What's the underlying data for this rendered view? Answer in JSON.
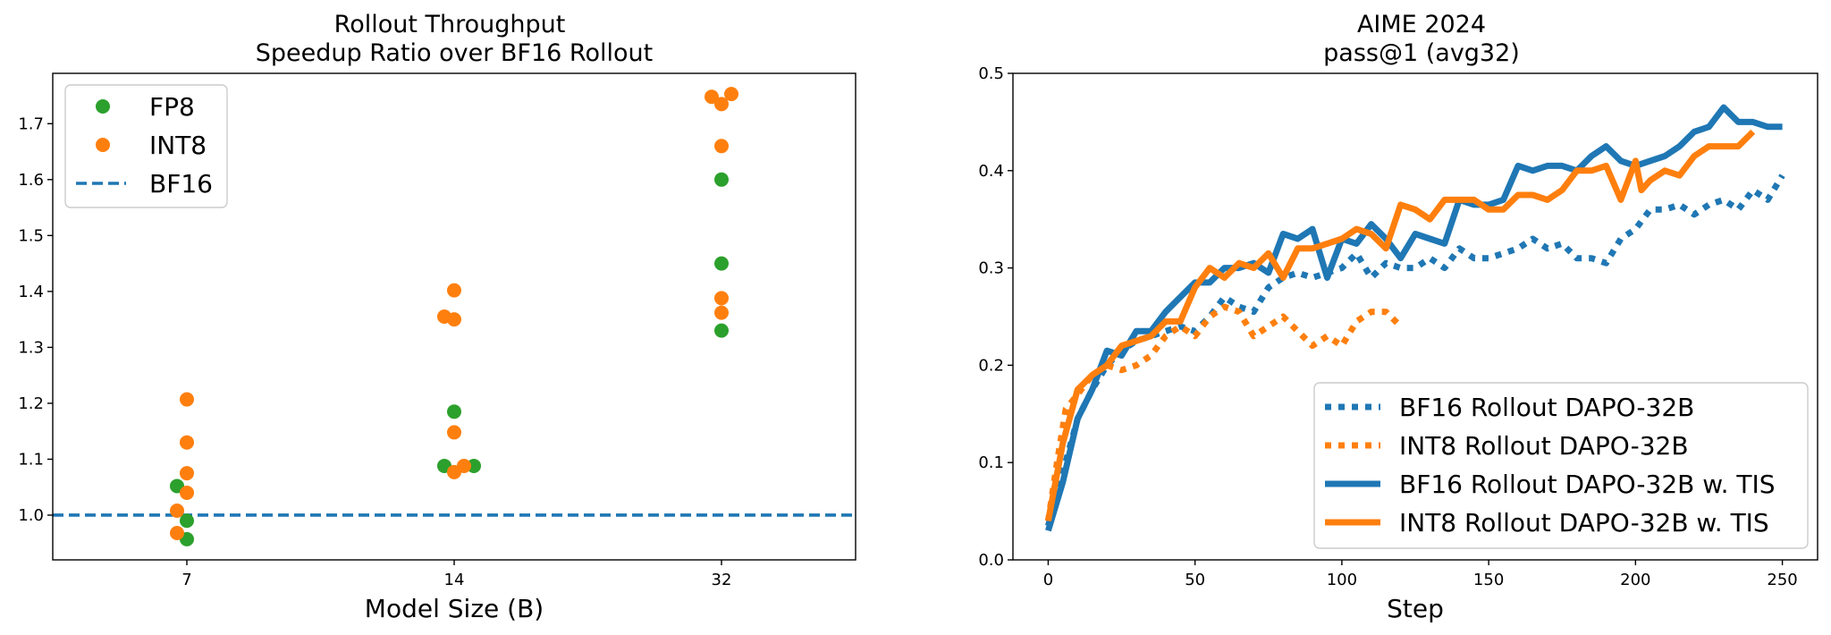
{
  "chart_data": [
    {
      "type": "scatter",
      "title": "Rollout Throughput",
      "subtitle": "Speedup Ratio over BF16 Rollout",
      "xlabel": "Model Size (B)",
      "ylabel": "",
      "categories": [
        "7",
        "14",
        "32"
      ],
      "ylim": [
        0.92,
        1.79
      ],
      "yticks": [
        "1.0",
        "1.1",
        "1.2",
        "1.3",
        "1.4",
        "1.5",
        "1.6",
        "1.7"
      ],
      "legend_position": "top-left",
      "grid": false,
      "series": [
        {
          "name": "FP8",
          "color": "#2ca02c",
          "points": [
            {
              "category": "7",
              "offset": -0.5,
              "y": 1.052
            },
            {
              "category": "7",
              "offset": 0.0,
              "y": 0.99
            },
            {
              "category": "7",
              "offset": 0.0,
              "y": 0.957
            },
            {
              "category": "14",
              "offset": -0.5,
              "y": 1.088
            },
            {
              "category": "14",
              "offset": 0.0,
              "y": 1.185
            },
            {
              "category": "14",
              "offset": 1.0,
              "y": 1.088
            },
            {
              "category": "32",
              "offset": 0.0,
              "y": 1.6
            },
            {
              "category": "32",
              "offset": 0.0,
              "y": 1.45
            },
            {
              "category": "32",
              "offset": 0.0,
              "y": 1.33
            }
          ]
        },
        {
          "name": "INT8",
          "color": "#ff7f0e",
          "points": [
            {
              "category": "7",
              "offset": 0.0,
              "y": 1.207
            },
            {
              "category": "7",
              "offset": 0.0,
              "y": 1.13
            },
            {
              "category": "7",
              "offset": 0.0,
              "y": 1.075
            },
            {
              "category": "7",
              "offset": 0.0,
              "y": 1.04
            },
            {
              "category": "7",
              "offset": -0.5,
              "y": 1.008
            },
            {
              "category": "7",
              "offset": -0.5,
              "y": 0.968
            },
            {
              "category": "14",
              "offset": -0.5,
              "y": 1.355
            },
            {
              "category": "14",
              "offset": 0.0,
              "y": 1.35
            },
            {
              "category": "14",
              "offset": 0.0,
              "y": 1.402
            },
            {
              "category": "14",
              "offset": 0.0,
              "y": 1.148
            },
            {
              "category": "14",
              "offset": 0.0,
              "y": 1.077
            },
            {
              "category": "14",
              "offset": 0.5,
              "y": 1.088
            },
            {
              "category": "32",
              "offset": -0.5,
              "y": 1.748
            },
            {
              "category": "32",
              "offset": 0.0,
              "y": 1.735
            },
            {
              "category": "32",
              "offset": 0.5,
              "y": 1.753
            },
            {
              "category": "32",
              "offset": 0.0,
              "y": 1.66
            },
            {
              "category": "32",
              "offset": 0.0,
              "y": 1.388
            },
            {
              "category": "32",
              "offset": 0.0,
              "y": 1.362
            }
          ]
        },
        {
          "name": "BF16",
          "color": "#1f77b4",
          "style": "dashed",
          "baseline": 1.0
        }
      ]
    },
    {
      "type": "line",
      "title": "AIME 2024",
      "subtitle": "pass@1 (avg32)",
      "xlabel": "Step",
      "ylabel": "",
      "xlim": [
        -12,
        262
      ],
      "ylim": [
        0.0,
        0.5
      ],
      "xticks": [
        "0",
        "50",
        "100",
        "150",
        "200",
        "250"
      ],
      "yticks": [
        "0.0",
        "0.1",
        "0.2",
        "0.3",
        "0.4",
        "0.5"
      ],
      "legend_position": "lower-right",
      "grid": false,
      "series": [
        {
          "name": "BF16 Rollout DAPO-32B",
          "color": "#1f77b4",
          "style": "dotted",
          "x": [
            0,
            5,
            10,
            15,
            20,
            25,
            30,
            35,
            40,
            45,
            50,
            55,
            60,
            65,
            70,
            75,
            80,
            85,
            90,
            95,
            100,
            105,
            110,
            115,
            120,
            125,
            130,
            135,
            140,
            145,
            150,
            155,
            160,
            165,
            170,
            175,
            180,
            185,
            190,
            195,
            200,
            205,
            210,
            215,
            220,
            225,
            230,
            235,
            240,
            245,
            250
          ],
          "y": [
            0.035,
            0.09,
            0.145,
            0.175,
            0.2,
            0.215,
            0.225,
            0.23,
            0.235,
            0.24,
            0.235,
            0.25,
            0.27,
            0.26,
            0.255,
            0.28,
            0.29,
            0.295,
            0.29,
            0.295,
            0.3,
            0.315,
            0.29,
            0.305,
            0.3,
            0.3,
            0.31,
            0.3,
            0.32,
            0.31,
            0.31,
            0.315,
            0.32,
            0.33,
            0.32,
            0.325,
            0.31,
            0.31,
            0.305,
            0.33,
            0.34,
            0.36,
            0.36,
            0.365,
            0.355,
            0.365,
            0.37,
            0.36,
            0.38,
            0.37,
            0.395
          ]
        },
        {
          "name": "INT8 Rollout DAPO-32B",
          "color": "#ff7f0e",
          "style": "dotted",
          "x": [
            0,
            3,
            6,
            10,
            15,
            20,
            25,
            30,
            35,
            40,
            45,
            50,
            55,
            60,
            65,
            70,
            75,
            80,
            85,
            90,
            95,
            100,
            105,
            110,
            115,
            120
          ],
          "y": [
            0.04,
            0.1,
            0.155,
            0.17,
            0.19,
            0.2,
            0.195,
            0.2,
            0.21,
            0.23,
            0.24,
            0.23,
            0.25,
            0.26,
            0.255,
            0.23,
            0.24,
            0.25,
            0.235,
            0.22,
            0.23,
            0.22,
            0.245,
            0.255,
            0.255,
            0.24
          ]
        },
        {
          "name": "BF16 Rollout DAPO-32B w. TIS",
          "color": "#1f77b4",
          "style": "solid",
          "x": [
            0,
            5,
            10,
            15,
            20,
            25,
            30,
            35,
            40,
            45,
            50,
            55,
            60,
            65,
            70,
            75,
            80,
            85,
            90,
            95,
            100,
            105,
            110,
            115,
            120,
            125,
            130,
            135,
            140,
            145,
            150,
            155,
            160,
            165,
            170,
            175,
            180,
            185,
            190,
            195,
            200,
            205,
            210,
            215,
            220,
            225,
            230,
            235,
            240,
            245,
            250
          ],
          "y": [
            0.03,
            0.08,
            0.145,
            0.175,
            0.215,
            0.21,
            0.235,
            0.235,
            0.255,
            0.27,
            0.285,
            0.285,
            0.3,
            0.3,
            0.305,
            0.295,
            0.335,
            0.33,
            0.34,
            0.29,
            0.33,
            0.325,
            0.345,
            0.33,
            0.31,
            0.335,
            0.33,
            0.325,
            0.37,
            0.365,
            0.365,
            0.37,
            0.405,
            0.4,
            0.405,
            0.405,
            0.4,
            0.415,
            0.425,
            0.41,
            0.405,
            0.41,
            0.415,
            0.425,
            0.44,
            0.445,
            0.465,
            0.45,
            0.45,
            0.445,
            0.445
          ]
        },
        {
          "name": "INT8 Rollout DAPO-32B w. TIS",
          "color": "#ff7f0e",
          "style": "solid",
          "x": [
            0,
            5,
            10,
            15,
            20,
            25,
            30,
            35,
            40,
            45,
            50,
            55,
            60,
            65,
            70,
            75,
            80,
            85,
            90,
            95,
            100,
            105,
            110,
            115,
            120,
            125,
            130,
            135,
            140,
            145,
            150,
            155,
            160,
            165,
            170,
            175,
            180,
            185,
            190,
            195,
            200,
            202,
            205,
            210,
            215,
            220,
            225,
            230,
            235,
            240
          ],
          "y": [
            0.04,
            0.12,
            0.175,
            0.19,
            0.2,
            0.22,
            0.225,
            0.23,
            0.245,
            0.245,
            0.28,
            0.3,
            0.29,
            0.305,
            0.3,
            0.315,
            0.29,
            0.32,
            0.32,
            0.325,
            0.33,
            0.34,
            0.335,
            0.32,
            0.365,
            0.36,
            0.35,
            0.37,
            0.37,
            0.37,
            0.36,
            0.36,
            0.375,
            0.375,
            0.37,
            0.38,
            0.4,
            0.4,
            0.405,
            0.37,
            0.41,
            0.38,
            0.39,
            0.4,
            0.395,
            0.415,
            0.425,
            0.425,
            0.425,
            0.44
          ]
        }
      ]
    }
  ]
}
